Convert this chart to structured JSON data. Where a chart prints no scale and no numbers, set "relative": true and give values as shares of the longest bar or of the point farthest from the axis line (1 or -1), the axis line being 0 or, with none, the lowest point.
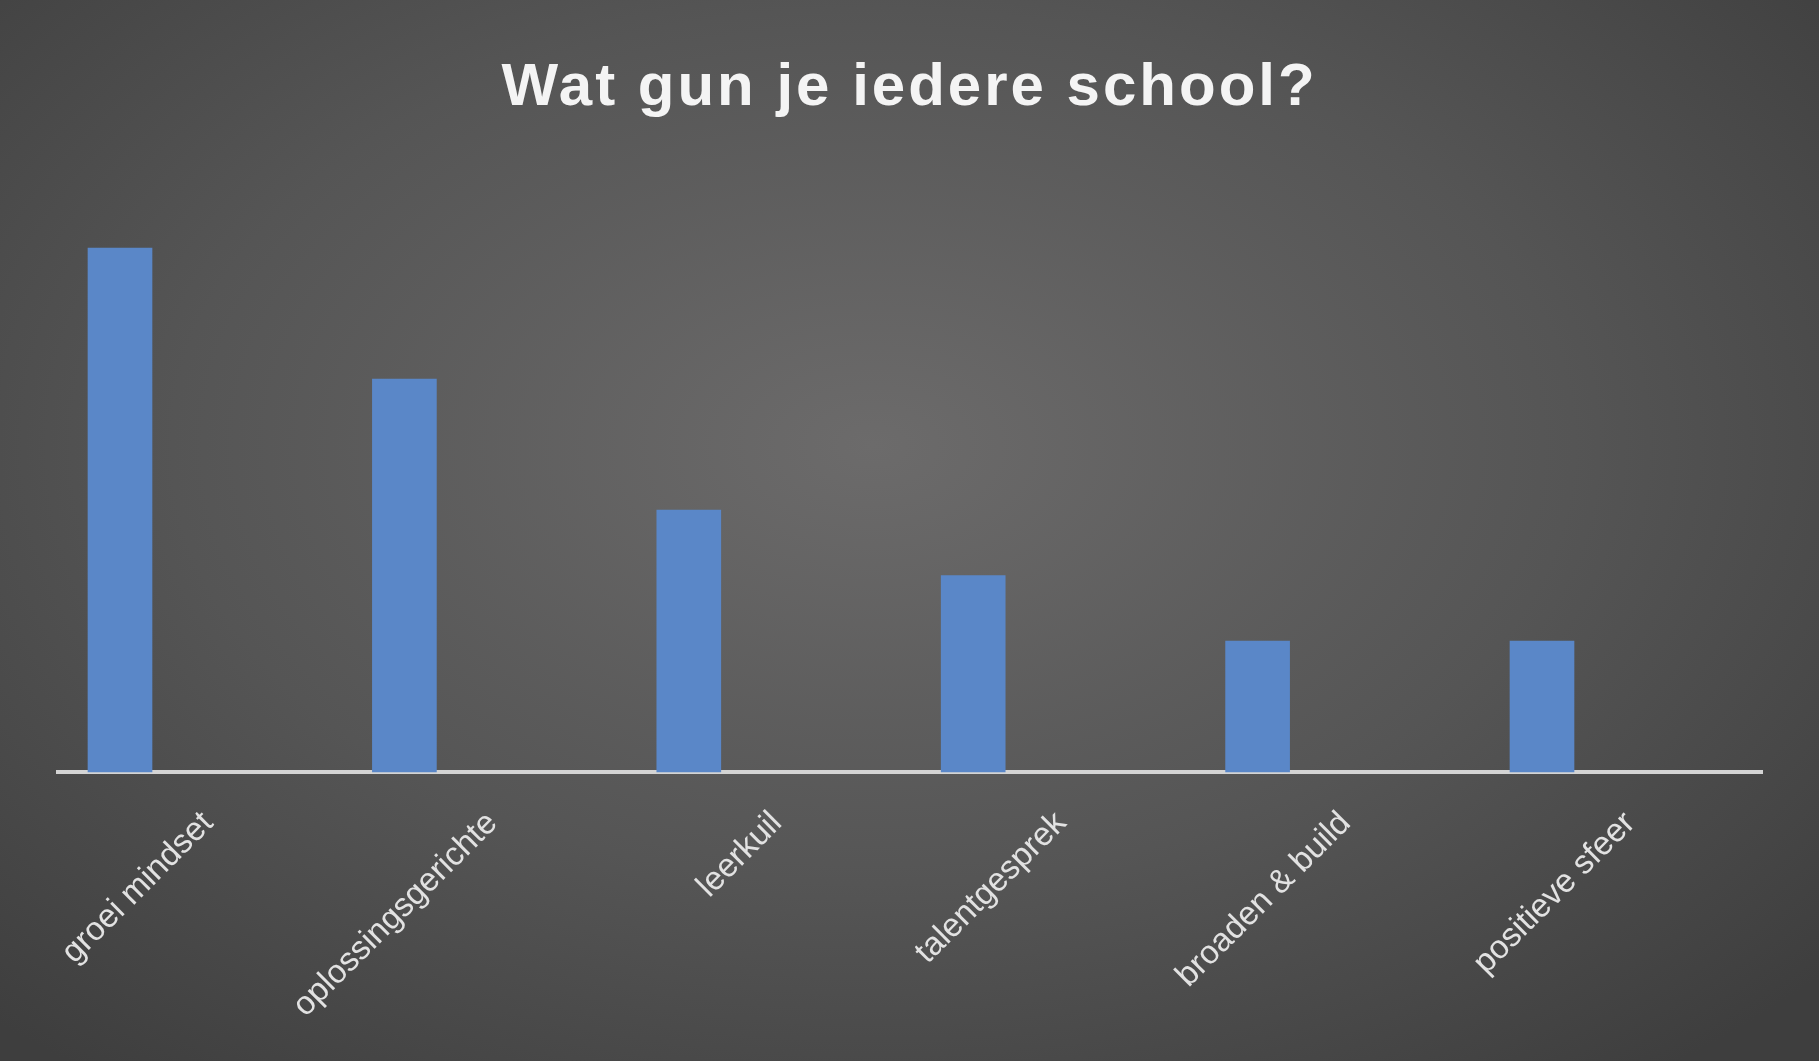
{
  "chart_data": {
    "type": "bar",
    "title": "Wat gun je iedere school?",
    "categories": [
      "groei mindset",
      "oplossingsgerichte",
      "leerkuil",
      "talentgesprek",
      "broaden & build",
      "positieve sfeer"
    ],
    "values": [
      1,
      0.75,
      0.5,
      0.375,
      0.25,
      0.25
    ],
    "color": "#5a87c8",
    "relative": true
  }
}
